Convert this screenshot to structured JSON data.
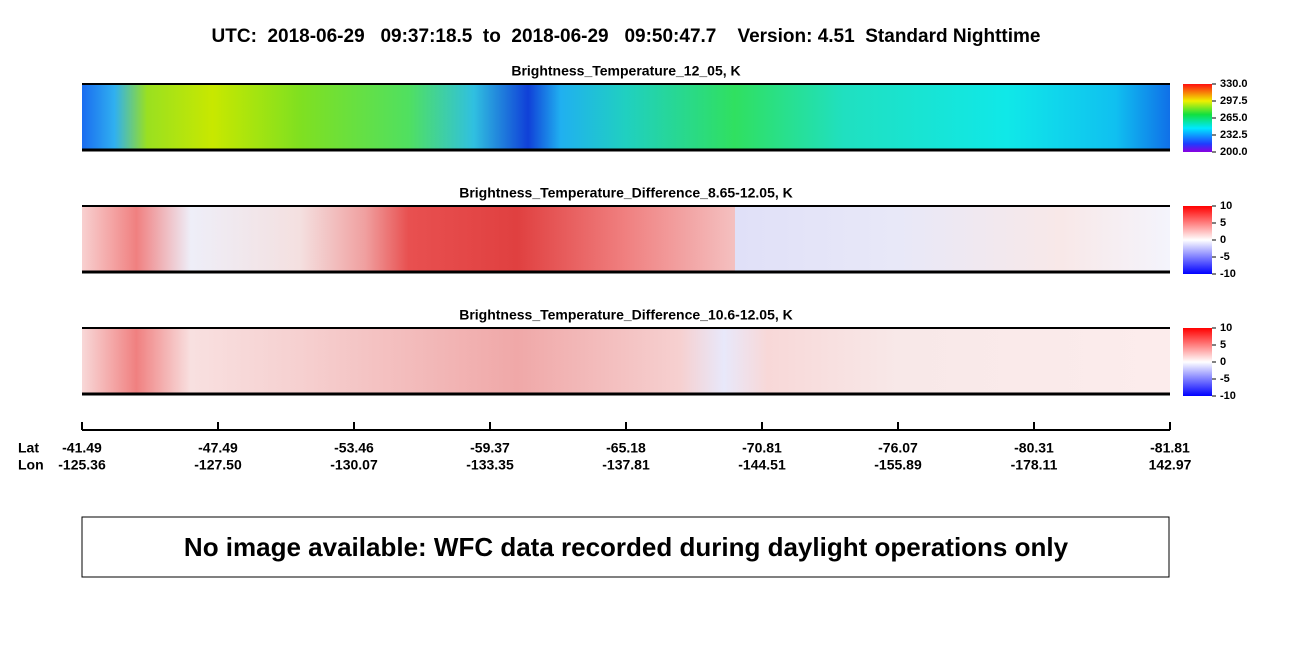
{
  "title": "UTC:  2018-06-29   09:37:18.5  to  2018-06-29   09:50:47.7    Version: 4.51  Standard Nighttime",
  "panels": [
    {
      "title": "Brightness_Temperature_12_05, K",
      "colorbar": {
        "lim": [
          200,
          330
        ],
        "ticks": [
          {
            "value": 330,
            "label": "330.0"
          },
          {
            "value": 297.5,
            "label": "297.5"
          },
          {
            "value": 265,
            "label": "265.0"
          },
          {
            "value": 232.5,
            "label": "232.5"
          },
          {
            "value": 200,
            "label": "200.0"
          }
        ]
      }
    },
    {
      "title": "Brightness_Temperature_Difference_8.65-12.05, K",
      "colorbar": {
        "lim": [
          -10,
          10
        ],
        "ticks": [
          10,
          5,
          0,
          -5,
          -10
        ]
      }
    },
    {
      "title": "Brightness_Temperature_Difference_10.6-12.05, K",
      "colorbar": {
        "lim": [
          -10,
          10
        ],
        "ticks": [
          10,
          5,
          0,
          -5,
          -10
        ]
      }
    }
  ],
  "axis": {
    "lat_label": "Lat",
    "lon_label": "Lon",
    "ticks": [
      {
        "lat": "-41.49",
        "lon": "-125.36"
      },
      {
        "lat": "-47.49",
        "lon": "-127.50"
      },
      {
        "lat": "-53.46",
        "lon": "-130.07"
      },
      {
        "lat": "-59.37",
        "lon": "-133.35"
      },
      {
        "lat": "-65.18",
        "lon": "-137.81"
      },
      {
        "lat": "-70.81",
        "lon": "-144.51"
      },
      {
        "lat": "-76.07",
        "lon": "-155.89"
      },
      {
        "lat": "-80.31",
        "lon": "-178.11"
      },
      {
        "lat": "-81.81",
        "lon": "142.97"
      }
    ]
  },
  "notice": "No image available: WFC data recorded during daylight operations only"
}
